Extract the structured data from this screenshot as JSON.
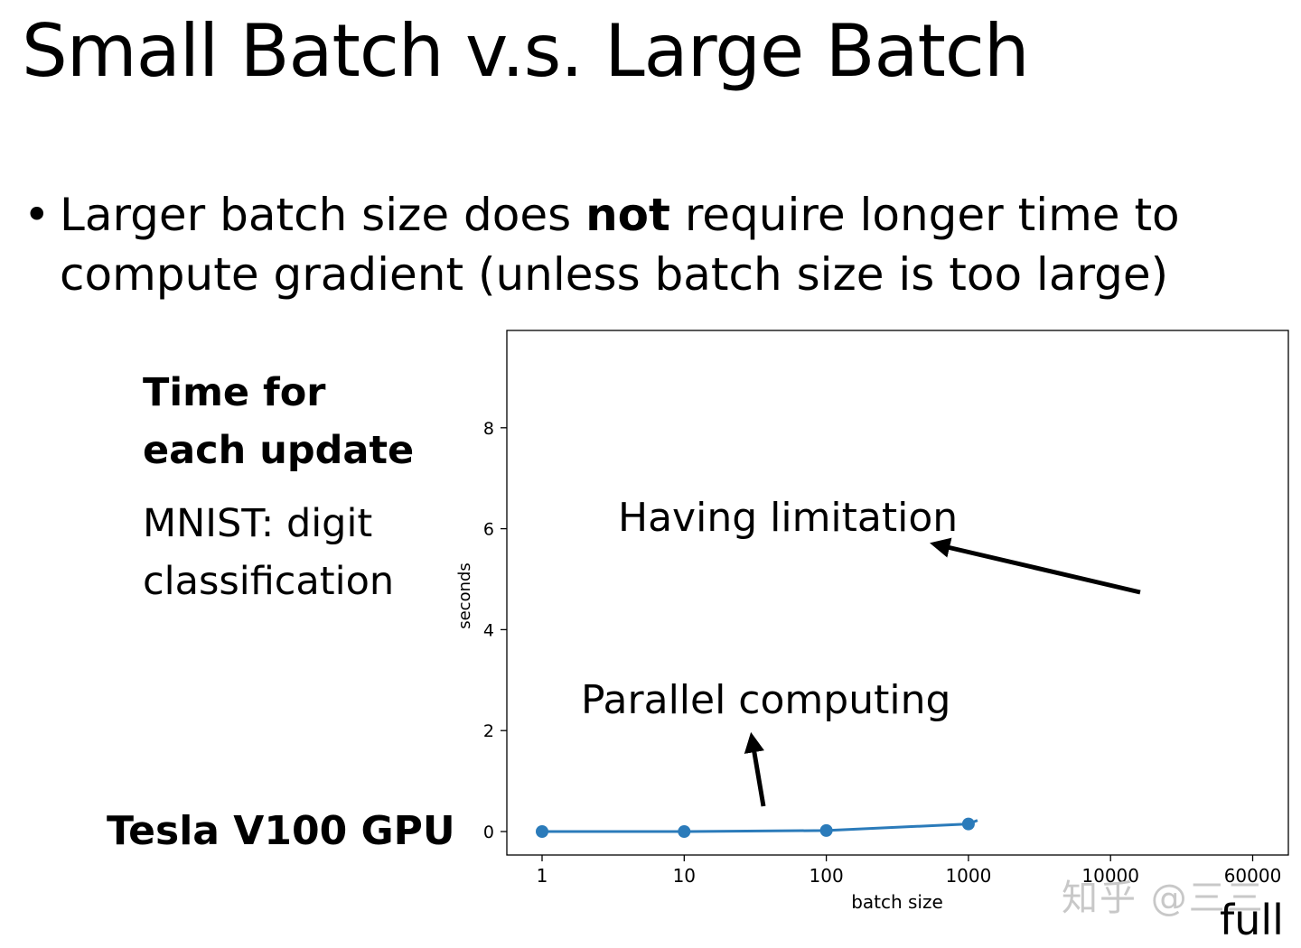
{
  "slide": {
    "title": "Small Batch v.s. Large Batch",
    "bullet": {
      "part1": "Larger batch size does ",
      "bold": "not",
      "part2": " require longer time to",
      "line2": "compute gradient  (unless batch size is too large)"
    },
    "side_heading_line1": "Time for",
    "side_heading_line2": "each update",
    "side_sub_line1": "MNIST: digit",
    "side_sub_line2": "classification",
    "gpu_label": "Tesla V100 GPU",
    "full_label": "full",
    "watermark": "知乎 @三三"
  },
  "chart_data": {
    "type": "line",
    "x": [
      "1",
      "10",
      "100",
      "1000",
      "10000",
      "60000"
    ],
    "xlabel": "batch size",
    "ylabel": "seconds",
    "yticks": [
      "0",
      "2",
      "4",
      "6",
      "8"
    ],
    "xticks": [
      "1",
      "10",
      "100",
      "1000",
      "10000",
      "60000"
    ],
    "ylim": [
      -0.5,
      9.8
    ],
    "series": [
      {
        "color": "#2b7bba",
        "x": [
          1,
          10,
          100,
          1000
        ],
        "values": [
          0.0,
          0.0,
          0.02,
          0.15
        ]
      }
    ],
    "annotations": [
      {
        "text": "Having limitation"
      },
      {
        "text": "Parallel computing"
      }
    ],
    "grid": false
  }
}
